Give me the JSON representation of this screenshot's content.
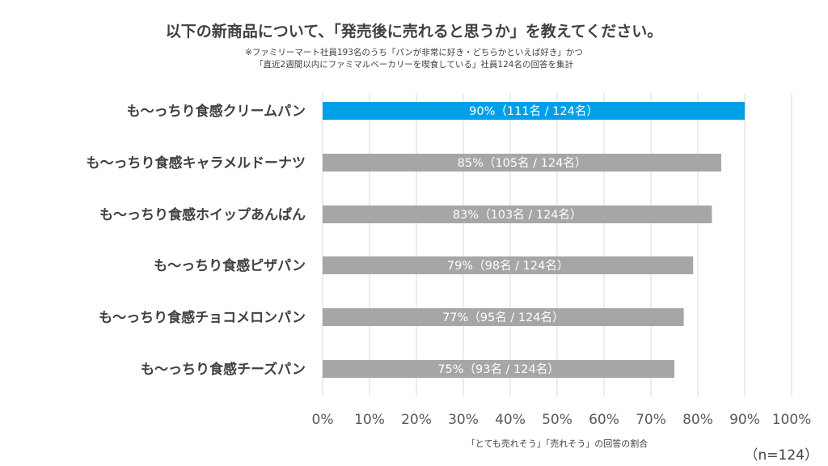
{
  "chart_data": {
    "type": "bar",
    "orientation": "horizontal",
    "title": "以下の新商品について、「発売後に売れると思うか」を教えてください。",
    "subtitle": [
      "※ファミリーマート社員193名のうち「パンが非常に好き・どちらかといえば好き」かつ",
      "「直近2週間以内にファミマルベーカリーを喫食している」社員124名の回答を集計"
    ],
    "categories": [
      "も～っちり食感クリームパン",
      "も～っちり食感キャラメルドーナツ",
      "も～っちり食感ホイップあんぱん",
      "も～っちり食感ピザパン",
      "も～っちり食感チョコメロンパン",
      "も～っちり食感チーズパン"
    ],
    "values": [
      90,
      85,
      83,
      79,
      77,
      75
    ],
    "data_labels": [
      "90%（111名 / 124名）",
      "85%（105名 / 124名）",
      "83%（103名 / 124名）",
      "79%（98名 / 124名）",
      "77%（95名 / 124名）",
      "75%（93名 / 124名）"
    ],
    "xlabel": "「とても売れそう」「売れそう」の回答の割合",
    "xlim": [
      0,
      100
    ],
    "xticks": [
      "0%",
      "10%",
      "20%",
      "30%",
      "40%",
      "50%",
      "60%",
      "70%",
      "80%",
      "90%",
      "100%"
    ],
    "grid": true,
    "note": "（n=124）",
    "colors": {
      "highlight": "#00A0E9",
      "default": "#A6A6A6",
      "grid": "#D9D9D9"
    }
  }
}
